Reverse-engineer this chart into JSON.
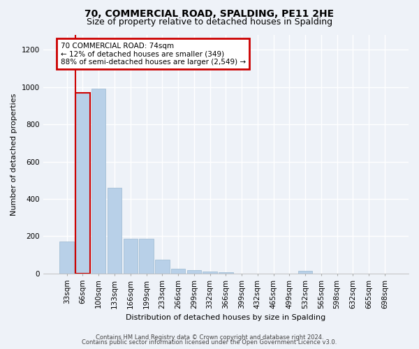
{
  "title": "70, COMMERCIAL ROAD, SPALDING, PE11 2HE",
  "subtitle": "Size of property relative to detached houses in Spalding",
  "xlabel": "Distribution of detached houses by size in Spalding",
  "ylabel": "Number of detached properties",
  "categories": [
    "33sqm",
    "66sqm",
    "100sqm",
    "133sqm",
    "166sqm",
    "199sqm",
    "233sqm",
    "266sqm",
    "299sqm",
    "332sqm",
    "366sqm",
    "399sqm",
    "432sqm",
    "465sqm",
    "499sqm",
    "532sqm",
    "565sqm",
    "598sqm",
    "632sqm",
    "665sqm",
    "698sqm"
  ],
  "values": [
    170,
    970,
    990,
    460,
    185,
    185,
    75,
    25,
    20,
    12,
    8,
    0,
    0,
    0,
    0,
    15,
    0,
    0,
    0,
    0,
    0
  ],
  "bar_color": "#b8d0e8",
  "bar_edge_color": "#9ab8d0",
  "highlight_bar_index": 1,
  "highlight_edge_color": "#cc0000",
  "annotation_text": "70 COMMERCIAL ROAD: 74sqm\n← 12% of detached houses are smaller (349)\n88% of semi-detached houses are larger (2,549) →",
  "annotation_box_facecolor": "#ffffff",
  "annotation_box_edgecolor": "#cc0000",
  "ylim": [
    0,
    1280
  ],
  "yticks": [
    0,
    200,
    400,
    600,
    800,
    1000,
    1200
  ],
  "footer1": "Contains HM Land Registry data © Crown copyright and database right 2024.",
  "footer2": "Contains public sector information licensed under the Open Government Licence v3.0.",
  "background_color": "#eef2f8",
  "grid_color": "#ffffff",
  "title_fontsize": 10,
  "subtitle_fontsize": 9,
  "axis_fontsize": 8,
  "tick_fontsize": 7.5,
  "footer_fontsize": 6
}
